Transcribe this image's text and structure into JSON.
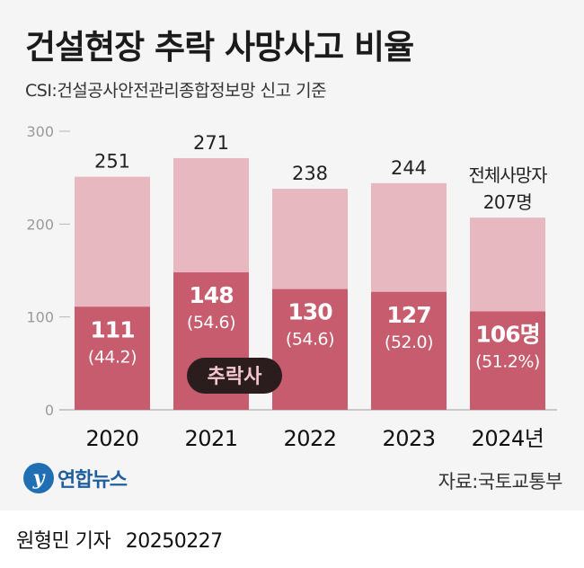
{
  "title": "건설현장 추락 사망사고 비율",
  "subtitle": "CSI:건설공사안전관리종합정보망 신고 기준",
  "source": "자료:국토교통부",
  "logo_text": "연합뉴스",
  "byline_name": "원형민 기자",
  "byline_date": "20250227",
  "callout_label": "추락사",
  "colors": {
    "total": "#e8b8c1",
    "falls": "#c65c6d",
    "callout_bg": "#2b1d1d",
    "callout_text": "#f3c7cf"
  },
  "chart_data": {
    "type": "bar",
    "categories": [
      "2020",
      "2021",
      "2022",
      "2023",
      "2024년"
    ],
    "series": [
      {
        "name": "",
        "values": [
          251,
          271,
          238,
          244,
          207
        ]
      },
      {
        "name": "추락사",
        "values": [
          111,
          148,
          130,
          127,
          106
        ]
      }
    ],
    "total_labels": [
      "251",
      "271",
      "238",
      "244",
      "207명"
    ],
    "total_prefix_last": "전체사망자",
    "fall_labels": [
      "111",
      "148",
      "130",
      "127",
      "106명"
    ],
    "fall_pct_labels": [
      "(44.2)",
      "(54.6)",
      "(54.6)",
      "(52.0)",
      "(51.2%)"
    ],
    "yticks": [
      "0",
      "100",
      "200",
      "300"
    ],
    "ylim": [
      0,
      300
    ],
    "xlabel": "",
    "ylabel": ""
  }
}
